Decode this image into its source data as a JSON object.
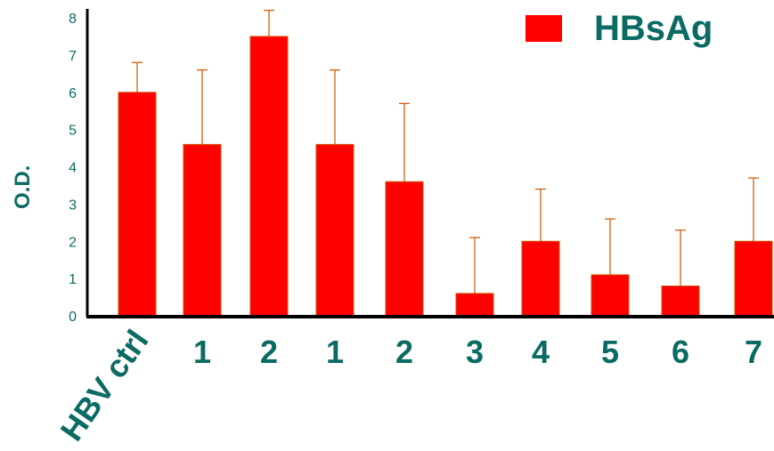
{
  "chart_data": {
    "type": "bar",
    "title": "",
    "xlabel": "",
    "ylabel": "O.D.",
    "ylim": [
      0,
      8
    ],
    "yticks": [
      "0",
      "1",
      "2",
      "3",
      "4",
      "5",
      "6",
      "7",
      "8"
    ],
    "categories": [
      "HBV ctrl",
      "1",
      "2",
      "1",
      "2",
      "3",
      "4",
      "5",
      "6",
      "7"
    ],
    "series": [
      {
        "name": "HBsAg",
        "color": "#ff0000",
        "values": [
          6.0,
          4.6,
          7.5,
          4.6,
          3.6,
          0.6,
          2.0,
          1.1,
          0.8,
          2.0
        ],
        "error": [
          0.8,
          2.0,
          0.7,
          2.0,
          2.1,
          1.5,
          1.4,
          1.5,
          1.5,
          1.7
        ]
      }
    ],
    "legend": "top-right",
    "grid": false
  }
}
